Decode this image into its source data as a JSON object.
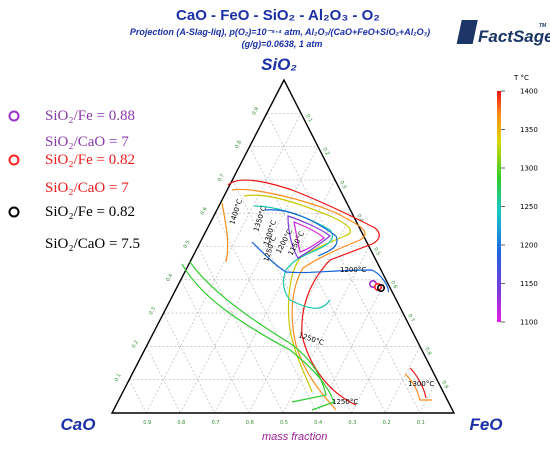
{
  "header": {
    "title": "CaO - FeO - SiO₂ - Al₂O₃ - O₂",
    "subtitle_line1": "Projection (A-Slag-liq), p(O₂)=10⁻⁸·⁴ atm, Al₂O₃/(CaO+FeO+SiO₂+Al₂O₃)",
    "subtitle_line2": "(g/g)=0.0638, 1 atm"
  },
  "logo": {
    "text": "FactSage",
    "tm": "TM"
  },
  "corners": {
    "top": "SiO₂",
    "left": "CaO",
    "right": "FeO"
  },
  "xlabel": "mass fraction",
  "ticks": [
    "0.1",
    "0.2",
    "0.3",
    "0.4",
    "0.5",
    "0.6",
    "0.7",
    "0.8",
    "0.9"
  ],
  "legend": [
    {
      "marker_color": "#9b30c8",
      "text_color": "#8a3aa8",
      "line1": "SiO₂/Fe = 0.88",
      "line2": "SiO₂/CaO = 7"
    },
    {
      "marker_color": "#ff2222",
      "text_color": "#ee1c1c",
      "line1": "SiO₂/Fe = 0.82",
      "line2": "SiO₂/CaO = 7"
    },
    {
      "marker_color": "#000000",
      "text_color": "#000000",
      "line1": "SiO₂/Fe = 0.82",
      "line2": "SiO₂/CaO = 7.5"
    }
  ],
  "colorbar": {
    "unit": "T °C",
    "ticks": [
      "1400",
      "1350",
      "1300",
      "1250",
      "1200",
      "1150",
      "1100"
    ],
    "range": [
      1100,
      1400
    ]
  },
  "isotherm_labels": [
    "1400°C",
    "1350°C",
    "1300°C",
    "1250°C",
    "1200°C",
    "1150°C",
    "1200°C",
    "1250°C",
    "1300°C",
    "1250°C"
  ],
  "colors": {
    "title": "#1a2fa8",
    "axis": "#000000",
    "grid": "#aaaaaa",
    "tick_text": "#2e8b2e"
  }
}
